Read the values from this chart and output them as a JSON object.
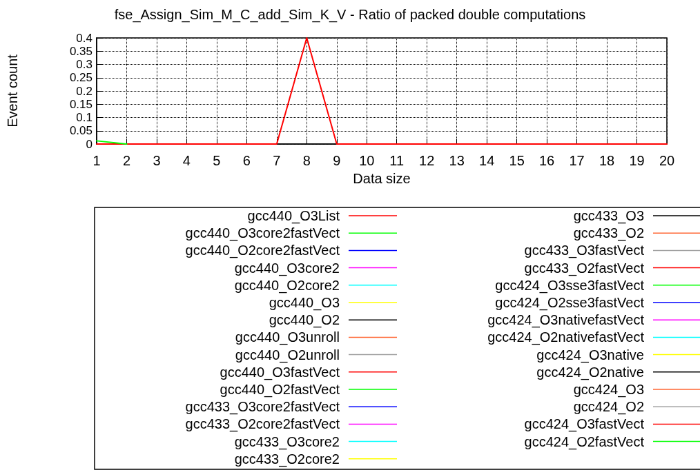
{
  "chart_data": {
    "type": "line",
    "title": "fse_Assign_Sim_M_C_add_Sim_K_V - Ratio of packed double computations",
    "xlabel": "Data size",
    "ylabel": "Event count",
    "x": [
      1,
      2,
      3,
      4,
      5,
      6,
      7,
      8,
      9,
      10,
      11,
      12,
      13,
      14,
      15,
      16,
      17,
      18,
      19,
      20
    ],
    "xlim": [
      1,
      20
    ],
    "xticks": [
      1,
      2,
      3,
      4,
      5,
      6,
      7,
      8,
      9,
      10,
      11,
      12,
      13,
      14,
      15,
      16,
      17,
      18,
      19,
      20
    ],
    "ylim": [
      0,
      0.4
    ],
    "yticks": [
      0,
      0.05,
      0.1,
      0.15,
      0.2,
      0.25,
      0.3,
      0.35,
      0.4
    ],
    "grid": true,
    "legend": "bottom",
    "line_style": "solid",
    "marker": "none",
    "series": [
      {
        "name": "gcc440_O3List",
        "color": "#ff0000",
        "values": [
          0,
          0,
          0,
          0,
          0,
          0,
          0,
          0.4,
          0,
          0,
          0,
          0,
          0,
          0,
          0,
          0,
          0,
          0,
          0,
          0
        ]
      },
      {
        "name": "gcc440_O3core2fastVect",
        "color": "#00ff00",
        "values": [
          0.012,
          0,
          null,
          null,
          null,
          null,
          null,
          null,
          null,
          null,
          null,
          null,
          null,
          null,
          null,
          null,
          null,
          null,
          null,
          null
        ]
      },
      {
        "name": "gcc440_O2core2fastVect",
        "color": "#0000ff",
        "values": [
          null,
          null,
          null,
          null,
          null,
          null,
          null,
          null,
          null,
          null,
          null,
          null,
          null,
          null,
          null,
          null,
          null,
          null,
          null,
          null
        ]
      },
      {
        "name": "gcc440_O3core2",
        "color": "#ff00ff",
        "values": [
          null,
          null,
          null,
          null,
          null,
          null,
          null,
          null,
          null,
          null,
          null,
          null,
          null,
          null,
          null,
          null,
          null,
          null,
          null,
          null
        ]
      },
      {
        "name": "gcc440_O2core2",
        "color": "#00ffff",
        "values": [
          null,
          null,
          null,
          null,
          null,
          null,
          null,
          null,
          null,
          null,
          null,
          null,
          null,
          null,
          null,
          null,
          null,
          null,
          null,
          null
        ]
      },
      {
        "name": "gcc440_O3",
        "color": "#ffff00",
        "values": [
          null,
          null,
          null,
          null,
          null,
          null,
          null,
          null,
          null,
          null,
          null,
          null,
          null,
          null,
          null,
          null,
          null,
          null,
          null,
          null
        ]
      },
      {
        "name": "gcc440_O2",
        "color": "#000000",
        "values": [
          null,
          null,
          null,
          null,
          null,
          null,
          null,
          null,
          null,
          null,
          null,
          null,
          null,
          null,
          null,
          null,
          null,
          null,
          null,
          null
        ]
      },
      {
        "name": "gcc440_O3unroll",
        "color": "#ff6633",
        "values": [
          null,
          null,
          null,
          null,
          null,
          null,
          null,
          null,
          null,
          null,
          null,
          null,
          null,
          null,
          null,
          null,
          null,
          null,
          null,
          null
        ]
      },
      {
        "name": "gcc440_O2unroll",
        "color": "#a0a0a0",
        "values": [
          null,
          null,
          null,
          null,
          null,
          null,
          null,
          null,
          null,
          null,
          null,
          null,
          null,
          null,
          null,
          null,
          null,
          null,
          null,
          null
        ]
      },
      {
        "name": "gcc440_O3fastVect",
        "color": "#ff0000",
        "values": [
          null,
          null,
          null,
          null,
          null,
          null,
          null,
          null,
          null,
          null,
          null,
          null,
          null,
          null,
          null,
          null,
          null,
          null,
          null,
          null
        ]
      },
      {
        "name": "gcc440_O2fastVect",
        "color": "#00ff00",
        "values": [
          null,
          null,
          null,
          null,
          null,
          null,
          null,
          null,
          null,
          null,
          null,
          null,
          null,
          null,
          null,
          null,
          null,
          null,
          null,
          null
        ]
      },
      {
        "name": "gcc433_O3core2fastVect",
        "color": "#0000ff",
        "values": [
          null,
          null,
          null,
          null,
          null,
          null,
          null,
          null,
          null,
          null,
          null,
          null,
          null,
          null,
          null,
          null,
          null,
          null,
          null,
          null
        ]
      },
      {
        "name": "gcc433_O2core2fastVect",
        "color": "#ff00ff",
        "values": [
          null,
          null,
          null,
          null,
          null,
          null,
          null,
          null,
          null,
          null,
          null,
          null,
          null,
          null,
          null,
          null,
          null,
          null,
          null,
          null
        ]
      },
      {
        "name": "gcc433_O3core2",
        "color": "#00ffff",
        "values": [
          null,
          null,
          null,
          null,
          null,
          null,
          null,
          null,
          null,
          null,
          null,
          null,
          null,
          null,
          null,
          null,
          null,
          null,
          null,
          null
        ]
      },
      {
        "name": "gcc433_O2core2",
        "color": "#ffff00",
        "values": [
          null,
          null,
          null,
          null,
          null,
          null,
          null,
          null,
          null,
          null,
          null,
          null,
          null,
          null,
          null,
          null,
          null,
          null,
          null,
          null
        ]
      },
      {
        "name": "gcc433_O3",
        "color": "#000000",
        "values": [
          null,
          null,
          null,
          null,
          null,
          null,
          null,
          null,
          null,
          null,
          null,
          null,
          null,
          null,
          null,
          null,
          null,
          null,
          null,
          null
        ]
      },
      {
        "name": "gcc433_O2",
        "color": "#ff6633",
        "values": [
          null,
          null,
          null,
          null,
          null,
          null,
          null,
          null,
          null,
          null,
          null,
          null,
          null,
          null,
          null,
          null,
          null,
          null,
          null,
          null
        ]
      },
      {
        "name": "gcc433_O3fastVect",
        "color": "#a0a0a0",
        "values": [
          null,
          null,
          null,
          null,
          null,
          null,
          null,
          null,
          null,
          null,
          null,
          null,
          null,
          null,
          null,
          null,
          null,
          null,
          null,
          null
        ]
      },
      {
        "name": "gcc433_O2fastVect",
        "color": "#ff0000",
        "values": [
          null,
          null,
          null,
          null,
          null,
          null,
          null,
          null,
          null,
          null,
          null,
          null,
          null,
          null,
          null,
          null,
          null,
          null,
          null,
          null
        ]
      },
      {
        "name": "gcc424_O3sse3fastVect",
        "color": "#00ff00",
        "values": [
          null,
          null,
          null,
          null,
          null,
          null,
          null,
          null,
          null,
          null,
          null,
          null,
          null,
          null,
          null,
          null,
          null,
          null,
          null,
          null
        ]
      },
      {
        "name": "gcc424_O2sse3fastVect",
        "color": "#0000ff",
        "values": [
          null,
          null,
          null,
          null,
          null,
          null,
          null,
          null,
          null,
          null,
          null,
          null,
          null,
          null,
          null,
          null,
          null,
          null,
          null,
          null
        ]
      },
      {
        "name": "gcc424_O3nativefastVect",
        "color": "#ff00ff",
        "values": [
          null,
          null,
          null,
          null,
          null,
          null,
          null,
          null,
          null,
          null,
          null,
          null,
          null,
          null,
          null,
          null,
          null,
          null,
          null,
          null
        ]
      },
      {
        "name": "gcc424_O2nativefastVect",
        "color": "#00ffff",
        "values": [
          null,
          null,
          null,
          null,
          null,
          null,
          null,
          null,
          null,
          null,
          null,
          null,
          null,
          null,
          null,
          null,
          null,
          null,
          null,
          null
        ]
      },
      {
        "name": "gcc424_O3native",
        "color": "#ffff00",
        "values": [
          null,
          null,
          null,
          null,
          null,
          null,
          null,
          null,
          null,
          null,
          null,
          null,
          null,
          null,
          null,
          null,
          null,
          null,
          null,
          null
        ]
      },
      {
        "name": "gcc424_O2native",
        "color": "#000000",
        "values": [
          null,
          null,
          null,
          null,
          null,
          null,
          null,
          null,
          null,
          null,
          null,
          null,
          null,
          null,
          null,
          null,
          null,
          null,
          null,
          null
        ]
      },
      {
        "name": "gcc424_O3",
        "color": "#ff6633",
        "values": [
          null,
          null,
          null,
          null,
          null,
          null,
          null,
          null,
          null,
          null,
          null,
          null,
          null,
          null,
          null,
          null,
          null,
          null,
          null,
          null
        ]
      },
      {
        "name": "gcc424_O2",
        "color": "#a0a0a0",
        "values": [
          null,
          null,
          null,
          null,
          null,
          null,
          null,
          null,
          null,
          null,
          null,
          null,
          null,
          null,
          null,
          null,
          null,
          null,
          null,
          null
        ]
      },
      {
        "name": "gcc424_O3fastVect",
        "color": "#ff0000",
        "values": [
          null,
          null,
          null,
          null,
          null,
          null,
          null,
          null,
          null,
          null,
          null,
          null,
          null,
          null,
          null,
          null,
          null,
          null,
          null,
          null
        ]
      },
      {
        "name": "gcc424_O2fastVect",
        "color": "#00ff00",
        "values": [
          null,
          null,
          null,
          null,
          null,
          null,
          null,
          null,
          null,
          null,
          null,
          null,
          null,
          null,
          null,
          null,
          null,
          null,
          null,
          null
        ]
      }
    ]
  }
}
